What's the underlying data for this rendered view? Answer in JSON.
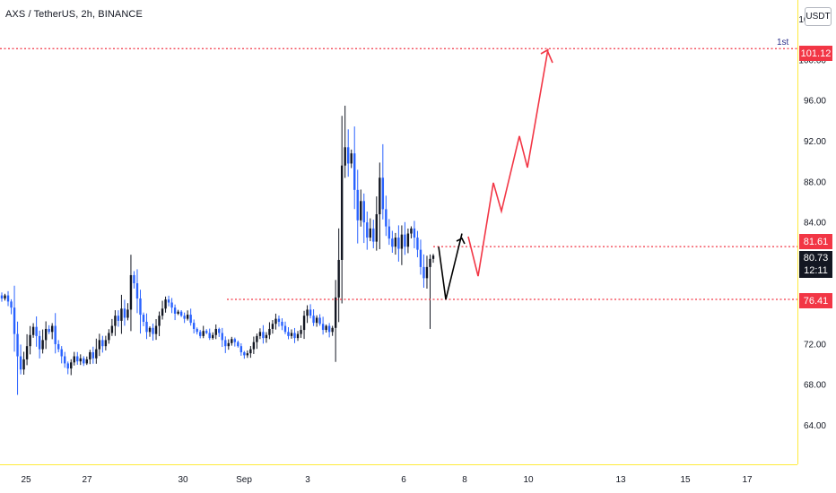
{
  "header": {
    "title": "AXS / TetherUS, 2h, BINANCE",
    "unit": "USDT"
  },
  "annotations": {
    "label_1st": "1st"
  },
  "price_tags": {
    "target": "101.12",
    "resistance": "81.61",
    "current": "80.73",
    "countdown": "12:11",
    "support": "76.41"
  },
  "colors": {
    "up": "#131722",
    "down": "#2962ff",
    "level": "#f23645",
    "projection_red": "#f23645",
    "projection_black": "#000000",
    "axis_text": "#131722"
  },
  "chart_data": {
    "type": "candlestick",
    "title": "AXS / TetherUS, 2h, BINANCE",
    "xlabel": "",
    "ylabel": "",
    "ylim": [
      60,
      106
    ],
    "x_ticks": [
      "25",
      "27",
      "30",
      "Sep",
      "3",
      "6",
      "8",
      "10",
      "13",
      "15",
      "17"
    ],
    "y_ticks": [
      "64.00",
      "68.00",
      "72.00",
      "76.00",
      "80.00",
      "84.00",
      "88.00",
      "92.00",
      "96.00",
      "100.00",
      "104.00"
    ],
    "grid": false,
    "levels": [
      {
        "price": 101.12
      },
      {
        "price": 81.61
      },
      {
        "price": 76.41
      }
    ],
    "candle_closes": [
      76.5,
      76.8,
      76.2,
      75.6,
      73.0,
      70.8,
      69.5,
      70.5,
      71.8,
      72.9,
      73.7,
      72.8,
      71.5,
      72.4,
      73.5,
      73.2,
      73.8,
      72.0,
      71.5,
      70.8,
      70.1,
      69.6,
      70.2,
      70.8,
      70.3,
      70.6,
      70.1,
      70.5,
      71.2,
      70.6,
      71.5,
      72.4,
      71.8,
      72.4,
      73.1,
      73.8,
      74.8,
      74.3,
      75.5,
      74.6,
      75.4,
      78.8,
      78.0,
      76.5,
      74.9,
      74.2,
      73.2,
      73.6,
      73.0,
      73.8,
      74.8,
      75.5,
      76.4,
      76.1,
      75.6,
      75.0,
      75.2,
      74.8,
      74.5,
      74.9,
      74.1,
      73.5,
      73.2,
      72.8,
      73.3,
      73.1,
      72.6,
      72.9,
      73.5,
      73.1,
      72.4,
      71.8,
      72.1,
      72.5,
      72.2,
      71.8,
      71.2,
      70.9,
      71.1,
      71.5,
      72.2,
      72.8,
      73.2,
      72.6,
      72.9,
      73.5,
      74.0,
      74.5,
      74.2,
      73.8,
      73.2,
      72.8,
      73.1,
      72.6,
      73.0,
      73.4,
      74.8,
      75.4,
      74.8,
      74.1,
      74.6,
      74.0,
      73.4,
      73.8,
      73.2,
      73.6,
      76.6,
      80.3,
      89.6,
      91.4,
      89.8,
      90.8,
      87.2,
      84.2,
      86.1,
      84.0,
      82.5,
      83.4,
      82.1,
      84.8,
      88.4,
      85.3,
      83.6,
      82.4,
      81.6,
      82.5,
      81.4,
      82.8,
      81.6,
      82.9,
      83.4,
      82.5,
      81.3,
      79.6,
      78.5,
      79.6,
      80.4,
      80.73
    ],
    "projection_black": [
      [
        81.6,
        0
      ],
      [
        76.4,
        1
      ],
      [
        82.9,
        2
      ]
    ],
    "projection_red": [
      82.6,
      78.7,
      87.9,
      85.1,
      92.5,
      89.4,
      101.1
    ]
  }
}
